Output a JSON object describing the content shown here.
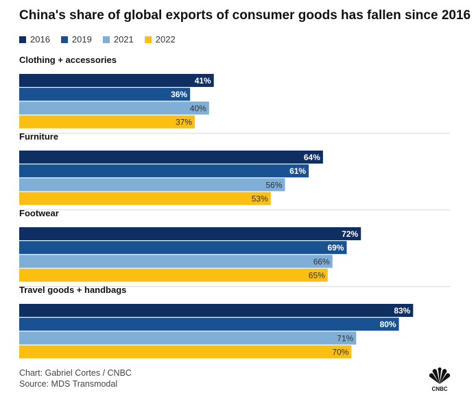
{
  "title": "China's share of global exports of consumer goods has fallen since 2016",
  "footer": {
    "credit": "Chart: Gabriel Cortes / CNBC",
    "source": "Source: MDS Transmodal"
  },
  "logo": {
    "text": "CNBC"
  },
  "chart_data": {
    "type": "bar",
    "orientation": "horizontal",
    "value_format": "percent",
    "categories": [
      "Clothing + accessories",
      "Furniture",
      "Footwear",
      "Travel goods + handbags"
    ],
    "series": [
      {
        "name": "2016",
        "color": "#0f2f63",
        "label_color": "#ffffff",
        "values": [
          41,
          64,
          72,
          83
        ]
      },
      {
        "name": "2019",
        "color": "#1a5291",
        "label_color": "#ffffff",
        "values": [
          36,
          61,
          69,
          80
        ]
      },
      {
        "name": "2021",
        "color": "#7faed6",
        "label_color": "#333333",
        "values": [
          40,
          56,
          66,
          71
        ]
      },
      {
        "name": "2022",
        "color": "#fbbf12",
        "label_color": "#333333",
        "values": [
          37,
          53,
          65,
          70
        ]
      }
    ],
    "xlim": [
      0,
      100
    ]
  }
}
